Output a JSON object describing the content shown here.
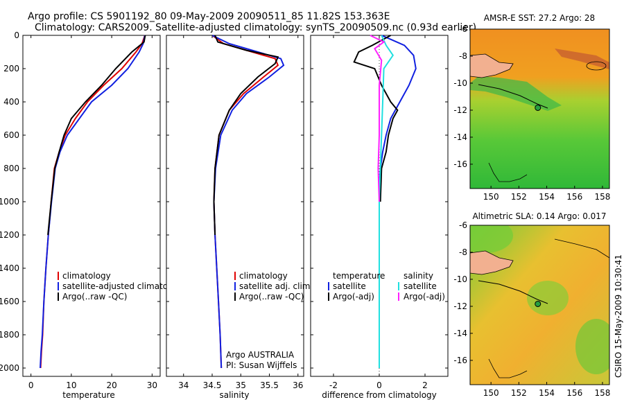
{
  "header": {
    "line1": "Argo profile: CS 5901192_80 09-May-2009 20090511_85 11.82S 153.363E",
    "line2": "Climatology: CARS2009. Satellite-adjusted climatology: synTS_20090509.nc (0.93d earlier)"
  },
  "footer_stamp": "CSIRO 15-May-2009 10:30:41",
  "colors": {
    "climatology": "#e00000",
    "satellite": "#1020e0",
    "argo": "#000000",
    "sat_salinity": "#20e0e0",
    "argo_adj_salinity": "#ff20ff",
    "ocean_warm": "#f08a1a",
    "land": "#f2b090",
    "green": "#28c040"
  },
  "chart_data": [
    {
      "type": "line",
      "id": "temperature-profile",
      "xlabel": "temperature",
      "ylabel": "",
      "xlim": [
        -2,
        32
      ],
      "ylim": [
        0,
        2050
      ],
      "yreversed": true,
      "xticks": [
        0,
        10,
        20,
        30
      ],
      "yticks": [
        0,
        200,
        400,
        600,
        800,
        1000,
        1200,
        1400,
        1600,
        1800,
        2000
      ],
      "legend": [
        "climatology",
        "satellite-adjusted climatolog",
        "Argo(..raw -QC)"
      ],
      "series": [
        {
          "name": "climatology",
          "color": "#e00000",
          "x": [
            28.2,
            27.5,
            26.0,
            22.5,
            18.0,
            14.0,
            11.0,
            8.5,
            7.0,
            5.8,
            5.0,
            4.3,
            3.7,
            3.2,
            2.9,
            2.6,
            2.4
          ],
          "y": [
            0,
            50,
            100,
            200,
            300,
            400,
            500,
            600,
            700,
            800,
            1000,
            1200,
            1400,
            1600,
            1800,
            1900,
            2000
          ]
        },
        {
          "name": "satellite-adjusted climatolog",
          "color": "#1020e0",
          "x": [
            28.2,
            27.8,
            26.8,
            24.0,
            20.0,
            15.0,
            12.0,
            9.0,
            7.2,
            6.0,
            5.1,
            4.3,
            3.7,
            3.2,
            2.8,
            2.5,
            2.3
          ],
          "y": [
            0,
            50,
            100,
            200,
            300,
            400,
            500,
            600,
            700,
            800,
            1000,
            1200,
            1400,
            1600,
            1800,
            1900,
            2000
          ]
        },
        {
          "name": "Argo(..raw -QC)",
          "color": "#000000",
          "x": [
            28.3,
            28.0,
            25.0,
            21.0,
            17.5,
            13.5,
            10.0,
            8.2,
            7.0,
            5.9,
            5.0,
            4.2
          ],
          "y": [
            0,
            40,
            100,
            200,
            300,
            400,
            500,
            600,
            700,
            800,
            1000,
            1200
          ]
        }
      ]
    },
    {
      "type": "line",
      "id": "salinity-profile",
      "xlabel": "salinity",
      "ylabel": "",
      "xlim": [
        33.7,
        36.1
      ],
      "ylim": [
        0,
        2050
      ],
      "yreversed": true,
      "xticks": [
        34,
        34.5,
        35,
        35.5,
        36
      ],
      "xticklabels": [
        "34",
        "34.5",
        "35",
        "35.5",
        "36"
      ],
      "legend": [
        "climatology",
        "satellite adj. clim.",
        "Argo(..raw -QC)"
      ],
      "annotation": [
        "Argo AUSTRALIA",
        "PI: Susan Wijffels"
      ],
      "series": [
        {
          "name": "climatology",
          "color": "#e00000",
          "x": [
            34.5,
            34.7,
            35.2,
            35.6,
            35.65,
            35.4,
            35.05,
            34.8,
            34.62,
            34.55,
            34.53,
            34.55,
            34.58,
            34.61,
            34.64,
            34.66
          ],
          "y": [
            0,
            50,
            100,
            140,
            180,
            250,
            350,
            450,
            600,
            800,
            1000,
            1200,
            1400,
            1600,
            1800,
            2000
          ]
        },
        {
          "name": "satellite adj. clim.",
          "color": "#1020e0",
          "x": [
            34.5,
            34.8,
            35.3,
            35.7,
            35.75,
            35.5,
            35.1,
            34.85,
            34.65,
            34.56,
            34.53,
            34.55,
            34.58,
            34.61,
            34.64,
            34.66
          ],
          "y": [
            0,
            50,
            100,
            140,
            180,
            250,
            350,
            450,
            600,
            800,
            1000,
            1200,
            1400,
            1600,
            1800,
            2000
          ]
        },
        {
          "name": "Argo(..raw -QC)",
          "color": "#000000",
          "x": [
            34.55,
            34.6,
            35.1,
            35.65,
            35.6,
            35.3,
            35.0,
            34.8,
            34.62,
            34.55,
            34.53,
            34.55
          ],
          "y": [
            0,
            40,
            90,
            130,
            170,
            250,
            350,
            450,
            600,
            800,
            1000,
            1200
          ]
        }
      ]
    },
    {
      "type": "line",
      "id": "difference-profile",
      "xlabel": "difference from climatology",
      "ylabel": "",
      "xlim": [
        -3,
        3
      ],
      "ylim": [
        0,
        2050
      ],
      "yreversed": true,
      "xticks": [
        -2,
        0,
        2
      ],
      "legend": {
        "temperature_heading": "temperature",
        "salinity_heading": "salinity",
        "temperature_entries": [
          "satellite",
          "Argo(-adj)"
        ],
        "salinity_entries": [
          "satellite",
          "Argo(-adj)"
        ]
      },
      "series": [
        {
          "name": "temperature satellite",
          "color": "#1020e0",
          "x": [
            0.1,
            0.6,
            1.1,
            1.5,
            1.6,
            1.3,
            0.9,
            0.5,
            0.3,
            0.15,
            0.05,
            0.0,
            0.0,
            0.0,
            0.0,
            0.0
          ],
          "y": [
            0,
            30,
            60,
            120,
            200,
            300,
            400,
            500,
            600,
            700,
            800,
            900,
            1000,
            1400,
            1800,
            2000
          ]
        },
        {
          "name": "temperature Argo(-adj)",
          "color": "#000000",
          "x": [
            0.5,
            -0.3,
            -0.9,
            -1.1,
            -0.2,
            0.1,
            0.5,
            0.8,
            0.6,
            0.4,
            0.3,
            0.1,
            0.05
          ],
          "y": [
            0,
            60,
            100,
            160,
            200,
            300,
            400,
            450,
            500,
            600,
            700,
            800,
            1000
          ]
        },
        {
          "name": "salinity satellite",
          "color": "#20e0e0",
          "x": [
            0.1,
            0.3,
            0.6,
            0.2,
            0.15,
            0.1,
            0.05,
            0.0,
            0.0,
            0.0,
            0.0
          ],
          "y": [
            0,
            60,
            120,
            200,
            400,
            600,
            800,
            1000,
            1400,
            1800,
            2000
          ]
        },
        {
          "name": "salinity Argo(-adj)",
          "color": "#ff20ff",
          "x": [
            -0.4,
            0.2,
            -0.2,
            0.1,
            0.0,
            0.0,
            -0.05,
            0.0
          ],
          "y": [
            0,
            40,
            80,
            150,
            300,
            600,
            800,
            1000
          ]
        }
      ]
    },
    {
      "type": "heatmap",
      "id": "sst-map",
      "title": "AMSR-E SST: 27.2 Argo: 28",
      "xlim": [
        148.5,
        158.5
      ],
      "ylim": [
        -17.8,
        -6
      ],
      "xticks": [
        150,
        152,
        154,
        156,
        158
      ],
      "yticks": [
        -6,
        -8,
        -10,
        -12,
        -14,
        -16
      ],
      "argo_position": {
        "lon": 153.363,
        "lat": -11.82
      }
    },
    {
      "type": "heatmap",
      "id": "sla-map",
      "title": "Altimetric SLA: 0.14 Argo: 0.017",
      "xlim": [
        148.5,
        158.5
      ],
      "ylim": [
        -17.8,
        -6
      ],
      "xticks": [
        150,
        152,
        154,
        156,
        158
      ],
      "yticks": [
        -6,
        -8,
        -10,
        -12,
        -14,
        -16
      ],
      "argo_position": {
        "lon": 153.363,
        "lat": -11.82
      }
    }
  ]
}
